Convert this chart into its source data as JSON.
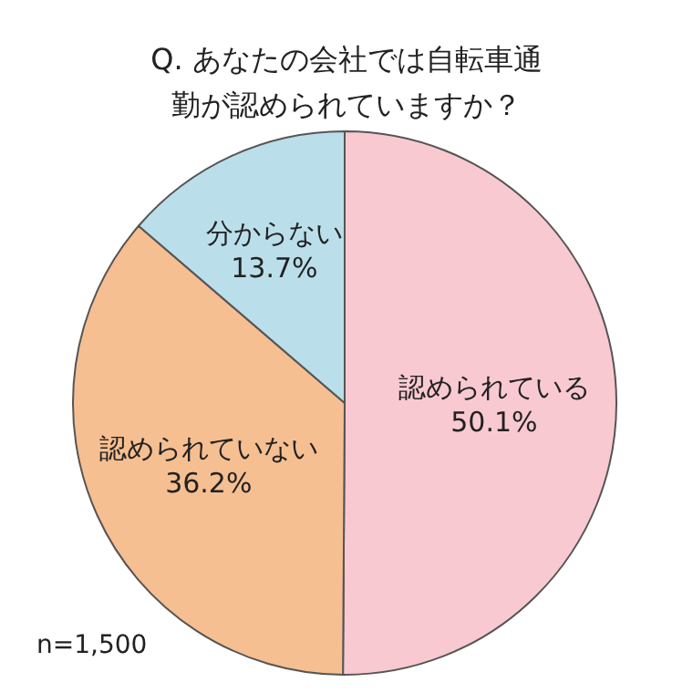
{
  "chart_data": {
    "type": "pie",
    "title": "Q. あなたの会社では自転車通勤が認められていますか？",
    "categories": [
      "認められている",
      "認められていない",
      "分からない"
    ],
    "values": [
      50.1,
      36.2,
      13.7
    ],
    "value_labels": [
      "50.1%",
      "36.2%",
      "13.7%"
    ],
    "colors": [
      "#f9c9d1",
      "#f6bf91",
      "#badfea"
    ],
    "annotations": [
      "n=1,500"
    ]
  }
}
